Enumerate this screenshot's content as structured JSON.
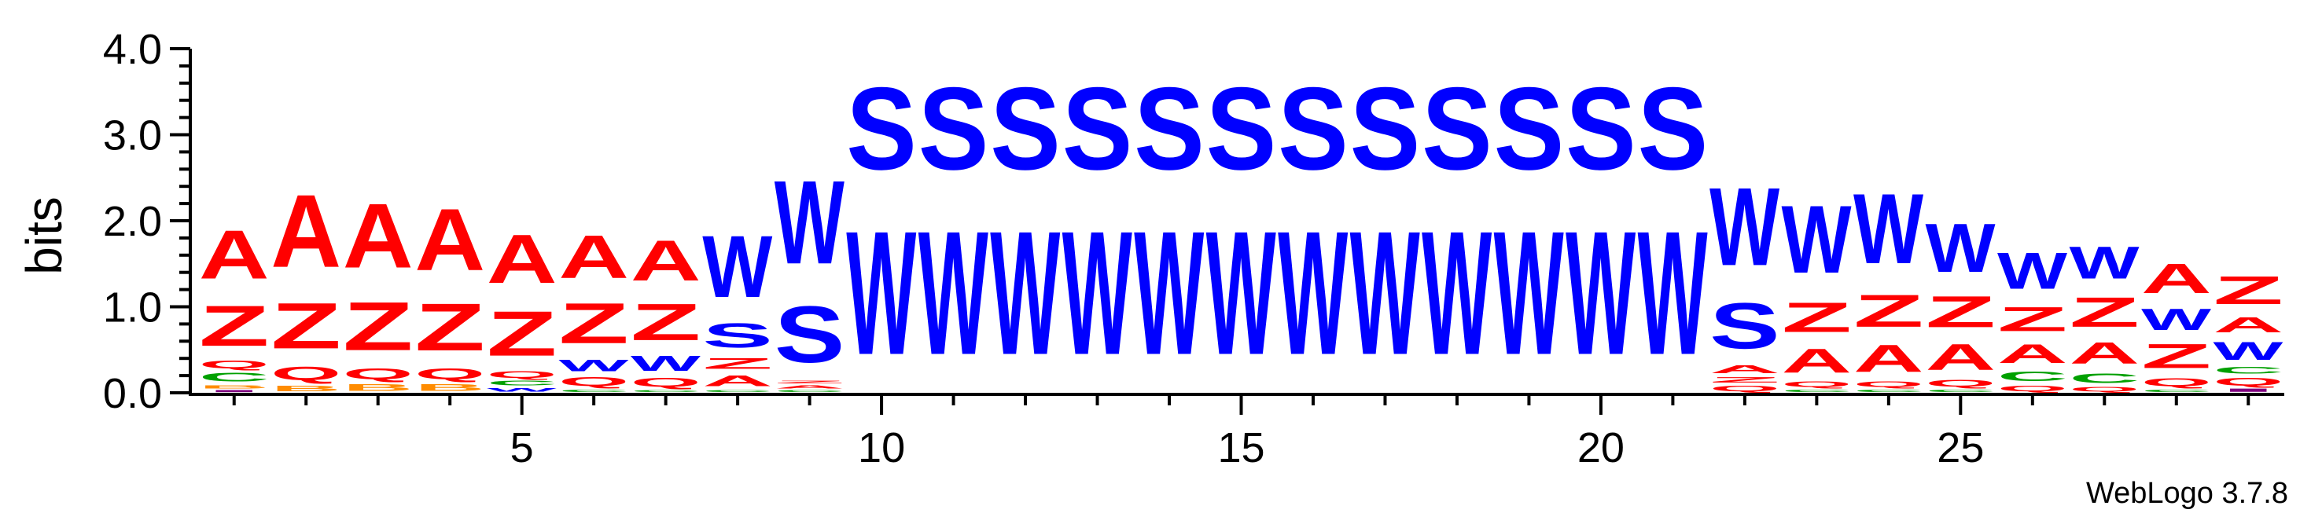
{
  "chart_data": {
    "type": "sequence-logo",
    "ylabel": "bits",
    "ylim": [
      0,
      4.0
    ],
    "xlim": [
      0.5,
      29.5
    ],
    "y_ticks": [
      "0.0",
      "1.0",
      "2.0",
      "3.0",
      "4.0"
    ],
    "y_tick_values": [
      0,
      1,
      2,
      3,
      4
    ],
    "x_ticks": [
      "5",
      "10",
      "15",
      "20",
      "25"
    ],
    "x_tick_values": [
      5,
      10,
      15,
      20,
      25
    ],
    "footer": "WebLogo 3.7.8",
    "colors": {
      "A": "#ff0000",
      "Z": "#ff0000",
      "Q": "#ff0000",
      "S": "#0000ff",
      "W": "#0000ff",
      "B": "#ff8c00",
      "C": "#00a000",
      "I": "#800080"
    },
    "positions": [
      {
        "pos": 1,
        "stack": [
          [
            "I",
            0.04
          ],
          [
            "B",
            0.06
          ],
          [
            "C",
            0.16
          ],
          [
            "Q",
            0.14
          ],
          [
            "Z",
            0.75
          ],
          [
            "A",
            0.9
          ]
        ]
      },
      {
        "pos": 2,
        "stack": [
          [
            "B",
            0.1
          ],
          [
            "Q",
            0.25
          ],
          [
            "Z",
            0.85
          ],
          [
            "A",
            1.35
          ]
        ]
      },
      {
        "pos": 3,
        "stack": [
          [
            "B",
            0.12
          ],
          [
            "Q",
            0.2
          ],
          [
            "Z",
            0.9
          ],
          [
            "A",
            1.2
          ]
        ]
      },
      {
        "pos": 4,
        "stack": [
          [
            "B",
            0.12
          ],
          [
            "Q",
            0.2
          ],
          [
            "Z",
            0.88
          ],
          [
            "A",
            1.15
          ]
        ]
      },
      {
        "pos": 5,
        "stack": [
          [
            "W",
            0.07
          ],
          [
            "C",
            0.08
          ],
          [
            "Q",
            0.12
          ],
          [
            "Z",
            0.83
          ],
          [
            "A",
            0.9
          ]
        ]
      },
      {
        "pos": 6,
        "stack": [
          [
            "C",
            0.05
          ],
          [
            "Q",
            0.16
          ],
          [
            "W",
            0.22
          ],
          [
            "Z",
            0.75
          ],
          [
            "A",
            0.8
          ]
        ]
      },
      {
        "pos": 7,
        "stack": [
          [
            "C",
            0.04
          ],
          [
            "Q",
            0.16
          ],
          [
            "W",
            0.28
          ],
          [
            "Z",
            0.68
          ],
          [
            "A",
            0.75
          ]
        ]
      },
      {
        "pos": 8,
        "stack": [
          [
            "C",
            0.04
          ],
          [
            "A",
            0.2
          ],
          [
            "Z",
            0.2
          ],
          [
            "S",
            0.45
          ],
          [
            "W",
            1.15
          ]
        ]
      },
      {
        "pos": 9,
        "stack": [
          [
            "C",
            0.04
          ],
          [
            "A",
            0.06
          ],
          [
            "Z",
            0.05
          ],
          [
            "S",
            1.05
          ],
          [
            "W",
            1.55
          ]
        ]
      },
      {
        "pos": 10,
        "stack": [
          [
            "W",
            2.3
          ],
          [
            "S",
            1.53
          ]
        ]
      },
      {
        "pos": 11,
        "stack": [
          [
            "W",
            2.3
          ],
          [
            "S",
            1.53
          ]
        ]
      },
      {
        "pos": 12,
        "stack": [
          [
            "W",
            2.3
          ],
          [
            "S",
            1.53
          ]
        ]
      },
      {
        "pos": 13,
        "stack": [
          [
            "W",
            2.3
          ],
          [
            "S",
            1.53
          ]
        ]
      },
      {
        "pos": 14,
        "stack": [
          [
            "W",
            2.3
          ],
          [
            "S",
            1.53
          ]
        ]
      },
      {
        "pos": 15,
        "stack": [
          [
            "W",
            2.3
          ],
          [
            "S",
            1.53
          ]
        ]
      },
      {
        "pos": 16,
        "stack": [
          [
            "W",
            2.3
          ],
          [
            "S",
            1.53
          ]
        ]
      },
      {
        "pos": 17,
        "stack": [
          [
            "W",
            2.3
          ],
          [
            "S",
            1.53
          ]
        ]
      },
      {
        "pos": 18,
        "stack": [
          [
            "W",
            2.3
          ],
          [
            "S",
            1.53
          ]
        ]
      },
      {
        "pos": 19,
        "stack": [
          [
            "W",
            2.3
          ],
          [
            "S",
            1.53
          ]
        ]
      },
      {
        "pos": 20,
        "stack": [
          [
            "W",
            2.3
          ],
          [
            "S",
            1.53
          ]
        ]
      },
      {
        "pos": 21,
        "stack": [
          [
            "W",
            2.3
          ],
          [
            "S",
            1.53
          ]
        ]
      },
      {
        "pos": 22,
        "stack": [
          [
            "Q",
            0.1
          ],
          [
            "Z",
            0.1
          ],
          [
            "A",
            0.15
          ],
          [
            "S",
            0.85
          ],
          [
            "W",
            1.45
          ]
        ]
      },
      {
        "pos": 23,
        "stack": [
          [
            "C",
            0.05
          ],
          [
            "Q",
            0.1
          ],
          [
            "A",
            0.45
          ],
          [
            "Z",
            0.55
          ],
          [
            "W",
            1.25
          ]
        ]
      },
      {
        "pos": 24,
        "stack": [
          [
            "C",
            0.05
          ],
          [
            "Q",
            0.1
          ],
          [
            "A",
            0.5
          ],
          [
            "Z",
            0.6
          ],
          [
            "W",
            1.3
          ]
        ]
      },
      {
        "pos": 25,
        "stack": [
          [
            "C",
            0.05
          ],
          [
            "Q",
            0.12
          ],
          [
            "A",
            0.48
          ],
          [
            "Z",
            0.58
          ],
          [
            "W",
            0.9
          ]
        ]
      },
      {
        "pos": 26,
        "stack": [
          [
            "Q",
            0.1
          ],
          [
            "C",
            0.18
          ],
          [
            "A",
            0.35
          ],
          [
            "Z",
            0.45
          ],
          [
            "W",
            0.67
          ]
        ]
      },
      {
        "pos": 27,
        "stack": [
          [
            "Q",
            0.08
          ],
          [
            "C",
            0.18
          ],
          [
            "A",
            0.4
          ],
          [
            "Z",
            0.55
          ],
          [
            "W",
            0.6
          ]
        ]
      },
      {
        "pos": 28,
        "stack": [
          [
            "C",
            0.05
          ],
          [
            "Q",
            0.15
          ],
          [
            "Z",
            0.45
          ],
          [
            "W",
            0.4
          ],
          [
            "A",
            0.55
          ]
        ]
      },
      {
        "pos": 29,
        "stack": [
          [
            "I",
            0.06
          ],
          [
            "Q",
            0.14
          ],
          [
            "C",
            0.12
          ],
          [
            "W",
            0.33
          ],
          [
            "A",
            0.28
          ],
          [
            "Z",
            0.52
          ]
        ]
      }
    ]
  }
}
